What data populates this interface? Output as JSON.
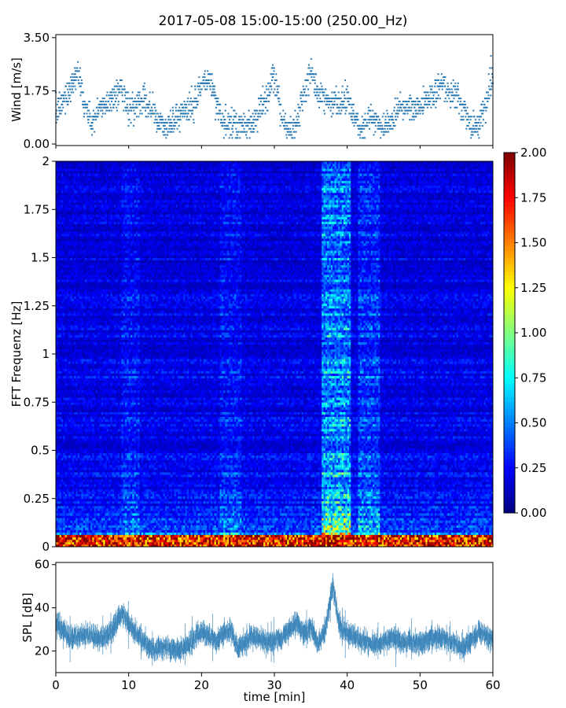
{
  "figure": {
    "title": "2017-05-08 15:00-15:00 (250.00_Hz)",
    "xlabel": "time [min]"
  },
  "chart_data": [
    {
      "id": "wind",
      "type": "scatter",
      "ylabel": "Wind [m/s]",
      "xlim": [
        0,
        60
      ],
      "ylim": [
        -0.05,
        3.6
      ],
      "yticks": [
        "0.00",
        "1.75",
        "3.50"
      ],
      "ytick_values": [
        0,
        1.75,
        3.5
      ],
      "xtick_values": [
        0,
        10,
        20,
        30,
        40,
        50,
        60
      ],
      "marker_color": "#2b7bb4",
      "n_points": 1800,
      "trend": {
        "x": [
          0,
          2,
          3,
          4,
          5,
          6,
          8,
          9,
          10,
          12,
          13,
          15,
          17,
          19,
          20,
          21,
          22,
          23,
          25,
          27,
          29,
          30,
          31,
          32,
          33,
          34,
          35,
          36,
          38,
          40,
          41,
          42,
          43,
          45,
          46,
          47,
          50,
          53,
          54,
          55,
          56,
          57,
          58,
          59,
          60
        ],
        "y": [
          0.9,
          1.8,
          2.4,
          1.2,
          0.6,
          1.1,
          1.5,
          1.8,
          1.1,
          1.5,
          1.1,
          0.4,
          1.0,
          1.2,
          1.9,
          2.1,
          1.4,
          0.6,
          0.5,
          0.6,
          1.5,
          2.1,
          0.9,
          0.3,
          0.6,
          1.7,
          2.3,
          1.6,
          1.3,
          1.5,
          0.8,
          0.5,
          0.8,
          0.5,
          0.7,
          1.2,
          1.2,
          1.9,
          1.5,
          1.6,
          1.1,
          0.4,
          0.7,
          1.2,
          2.1
        ]
      }
    },
    {
      "id": "spectrogram",
      "type": "heatmap",
      "ylabel": "FFT Frequenz [Hz]",
      "xlim": [
        0,
        60
      ],
      "ylim": [
        0,
        2
      ],
      "yticks": [
        "0",
        "0.25",
        "0.5",
        "0.75",
        "1",
        "1.25",
        "1.5",
        "1.75",
        "2"
      ],
      "ytick_values": [
        0,
        0.25,
        0.5,
        0.75,
        1,
        1.25,
        1.5,
        1.75,
        2
      ],
      "n_time_bins": 240,
      "n_freq_bins": 160,
      "colormap": "jet",
      "vmin": 0,
      "vmax": 2,
      "colorbar_ticks": [
        "0.00",
        "0.25",
        "0.50",
        "0.75",
        "1.00",
        "1.25",
        "1.50",
        "1.75",
        "2.00"
      ],
      "colorbar_tick_values": [
        0,
        0.25,
        0.5,
        0.75,
        1,
        1.25,
        1.5,
        1.75,
        2
      ],
      "base_level": 0.22,
      "bright_band": {
        "x_start": 36.5,
        "x_end": 40.5,
        "level": 0.55
      },
      "secondary_bands": [
        {
          "x_start": 41.5,
          "x_end": 44.5,
          "level": 0.38
        },
        {
          "x_start": 22.5,
          "x_end": 25.5,
          "level": 0.3
        },
        {
          "x_start": 9.0,
          "x_end": 11.5,
          "level": 0.3
        }
      ],
      "low_freq_hot_below_hz": 0.06,
      "low_freq_peak": 2.0
    },
    {
      "id": "spl",
      "type": "area",
      "ylabel": "SPL [dB]",
      "xlim": [
        0,
        60
      ],
      "ylim": [
        10,
        61
      ],
      "yticks": [
        "20",
        "40",
        "60"
      ],
      "ytick_values": [
        20,
        40,
        60
      ],
      "xticks": [
        "0",
        "10",
        "20",
        "30",
        "40",
        "50",
        "60"
      ],
      "xtick_values": [
        0,
        10,
        20,
        30,
        40,
        50,
        60
      ],
      "color": "#2b7bb4",
      "n_points": 1200,
      "trend": {
        "x": [
          0,
          2,
          4,
          6,
          8,
          9,
          11,
          13,
          15,
          17,
          19,
          20,
          22,
          24,
          25,
          27,
          29,
          31,
          33,
          34,
          35,
          36,
          37,
          38,
          39,
          40,
          41,
          42,
          44,
          46,
          48,
          50,
          52,
          54,
          56,
          58,
          60
        ],
        "y": [
          33,
          26,
          28,
          25,
          30,
          38,
          28,
          21,
          22,
          20,
          26,
          29,
          25,
          30,
          21,
          27,
          24,
          26,
          33,
          28,
          31,
          23,
          30,
          50,
          31,
          28,
          27,
          25,
          23,
          26,
          24,
          24,
          26,
          25,
          21,
          29,
          25
        ]
      },
      "spread": 3.5
    }
  ]
}
